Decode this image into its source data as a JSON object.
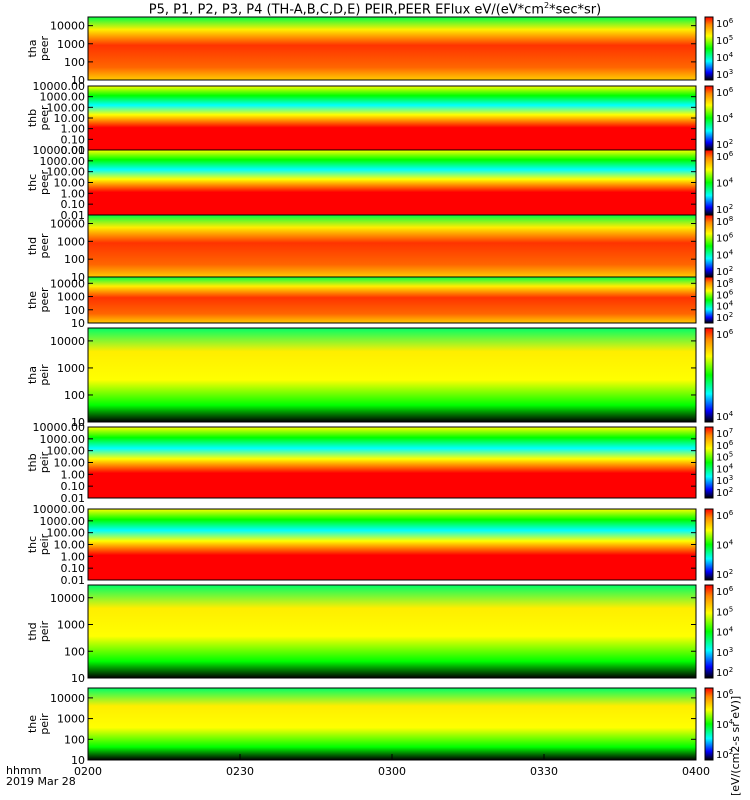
{
  "title": {
    "pre": "P5, P1, P2, P3, P4 (TH-A,B,C,D,E) PEIR,PEER EFlux eV/(eV*cm",
    "sup1": "2",
    "post": "*sec*sr)"
  },
  "time_axis": {
    "ticks": [
      "0200",
      "0230",
      "0300",
      "0330",
      "0400"
    ],
    "unit_label": "hhmm",
    "date_label": "2019 Mar 28"
  },
  "colorbar_unit": "[eV/(cm2-s sr eV)]",
  "colors": {
    "black": "#000000",
    "red": "#ff0000",
    "yellow": "#ffff00",
    "cyan": "#00ffff",
    "blue": "#0000ff"
  },
  "chart_data": {
    "type": "heatmap",
    "x_range": [
      "0200",
      "0400"
    ],
    "panels": [
      {
        "probe": "tha",
        "species": "peer",
        "ylabel": [
          "tha",
          "peer"
        ],
        "yticks": [
          "10",
          "100",
          "1000",
          "10000"
        ],
        "ylim": [
          10,
          30000
        ],
        "log": true,
        "cbar": [
          "10^6",
          "10^5",
          "10^4",
          "10^3"
        ]
      },
      {
        "probe": "thb",
        "species": "peer",
        "ylabel": [
          "thb",
          "peer"
        ],
        "yticks": [
          "0.01",
          "0.10",
          "1.00",
          "10.00",
          "100.00",
          "1000.00",
          "10000.00"
        ],
        "ylim": [
          0.01,
          10000
        ],
        "log": true,
        "cbar": [
          "10^6",
          "10^4",
          "10^2"
        ]
      },
      {
        "probe": "thc",
        "species": "peer",
        "ylabel": [
          "thc",
          "peer"
        ],
        "yticks": [
          "0.01",
          "0.10",
          "1.00",
          "10.00",
          "100.00",
          "1000.00",
          "10000.00"
        ],
        "ylim": [
          0.01,
          10000
        ],
        "log": true,
        "cbar": [
          "10^6",
          "10^4",
          "10^2"
        ]
      },
      {
        "probe": "thd",
        "species": "peer",
        "ylabel": [
          "thd",
          "peer"
        ],
        "yticks": [
          "10",
          "100",
          "1000",
          "10000"
        ],
        "ylim": [
          10,
          30000
        ],
        "log": true,
        "cbar": [
          "10^8",
          "10^6",
          "10^4",
          "10^2"
        ]
      },
      {
        "probe": "the",
        "species": "peer",
        "ylabel": [
          "the",
          "peer"
        ],
        "yticks": [
          "10",
          "100",
          "1000",
          "10000"
        ],
        "ylim": [
          10,
          30000
        ],
        "log": true,
        "cbar": [
          "10^8",
          "10^6",
          "10^4",
          "10^2"
        ]
      },
      {
        "probe": "tha",
        "species": "peir",
        "ylabel": [
          "tha",
          "peir"
        ],
        "yticks": [
          "10",
          "100",
          "1000",
          "10000"
        ],
        "ylim": [
          10,
          30000
        ],
        "log": true,
        "cbar": [
          "10^6",
          "10^4"
        ]
      },
      {
        "probe": "thb",
        "species": "peir",
        "ylabel": [
          "thb",
          "peir"
        ],
        "yticks": [
          "0.01",
          "0.10",
          "1.00",
          "10.00",
          "100.00",
          "1000.00",
          "10000.00"
        ],
        "ylim": [
          0.01,
          10000
        ],
        "log": true,
        "cbar": [
          "10^7",
          "10^6",
          "10^5",
          "10^4",
          "10^3",
          "10^2"
        ]
      },
      {
        "probe": "thc",
        "species": "peir",
        "ylabel": [
          "thc",
          "peir"
        ],
        "yticks": [
          "0.01",
          "0.10",
          "1.00",
          "10.00",
          "100.00",
          "1000.00",
          "10000.00"
        ],
        "ylim": [
          0.01,
          10000
        ],
        "log": true,
        "cbar": [
          "10^6",
          "10^4",
          "10^2"
        ]
      },
      {
        "probe": "thd",
        "species": "peir",
        "ylabel": [
          "thd",
          "peir"
        ],
        "yticks": [
          "10",
          "100",
          "1000",
          "10000"
        ],
        "ylim": [
          10,
          30000
        ],
        "log": true,
        "cbar": [
          "10^6",
          "10^5",
          "10^4",
          "10^3",
          "10^2"
        ]
      },
      {
        "probe": "the",
        "species": "peir",
        "ylabel": [
          "the",
          "peir"
        ],
        "yticks": [
          "10",
          "100",
          "1000",
          "10000"
        ],
        "ylim": [
          10,
          30000
        ],
        "log": true,
        "cbar": [
          "10^6",
          "10^4",
          "10^2"
        ]
      }
    ]
  }
}
